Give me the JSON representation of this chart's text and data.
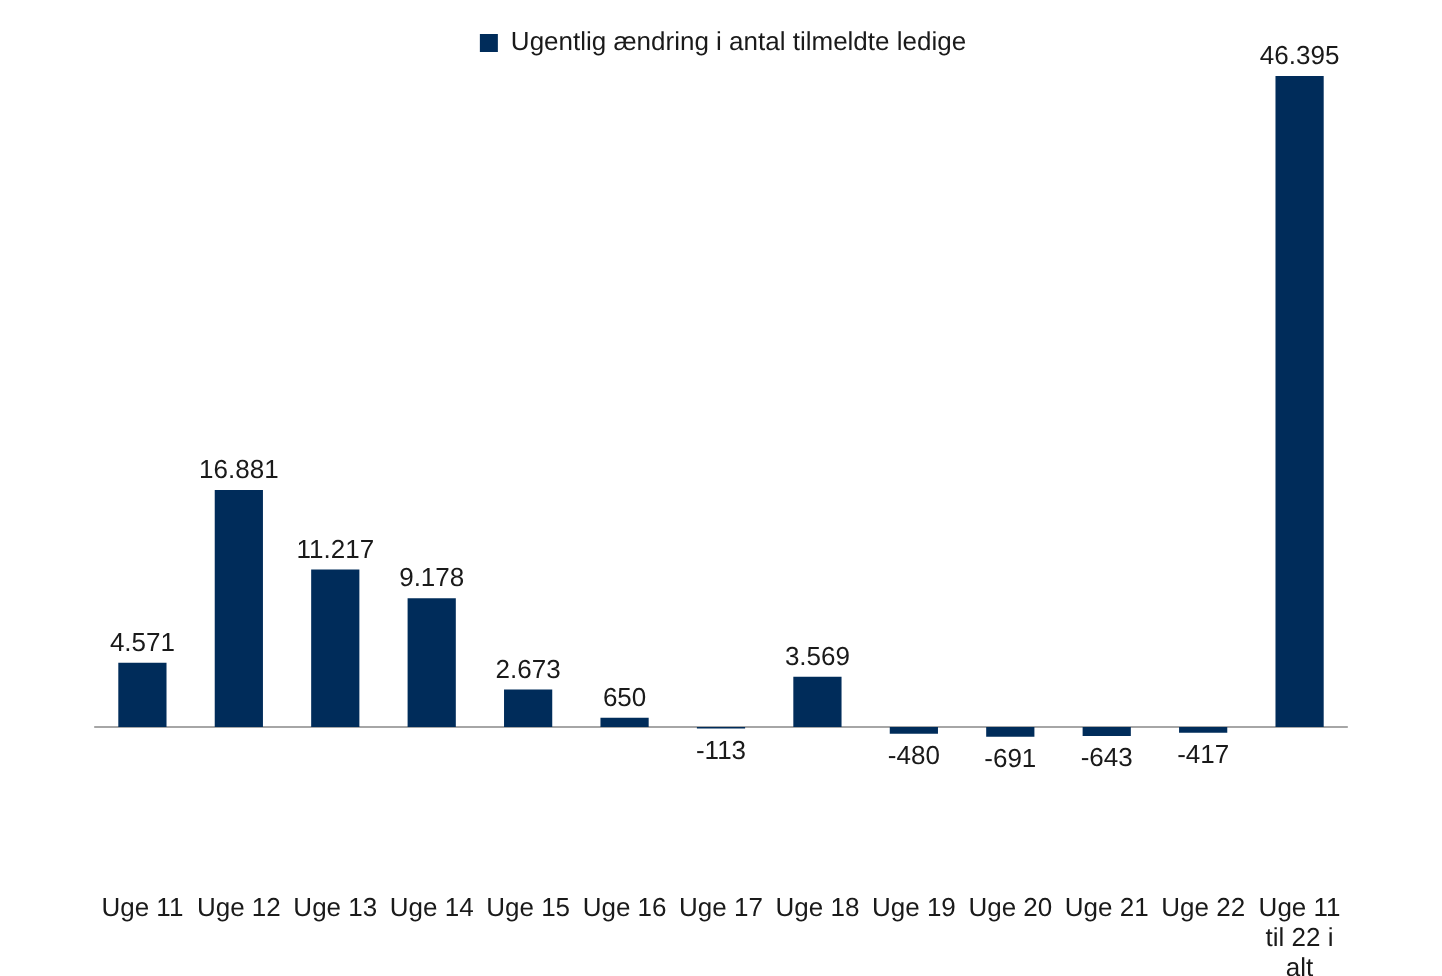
{
  "chart_data": {
    "type": "bar",
    "categories": [
      "Uge 11",
      "Uge 12",
      "Uge 13",
      "Uge 14",
      "Uge 15",
      "Uge 16",
      "Uge 17",
      "Uge 18",
      "Uge 19",
      "Uge 20",
      "Uge 21",
      "Uge 22",
      "Uge 11 til 22 i alt"
    ],
    "series": [
      {
        "name": "Ugentlig ændring i antal tilmeldte ledige",
        "color": "#002c5a",
        "values": [
          4571,
          16881,
          11217,
          9178,
          2673,
          650,
          -113,
          3569,
          -480,
          -691,
          -643,
          -417,
          46395
        ],
        "value_labels": [
          "4.571",
          "16.881",
          "11.217",
          "9.178",
          "2.673",
          "650",
          "-113",
          "3.569",
          "-480",
          "-691",
          "-643",
          "-417",
          "46.395"
        ]
      }
    ],
    "legend": "top"
  }
}
